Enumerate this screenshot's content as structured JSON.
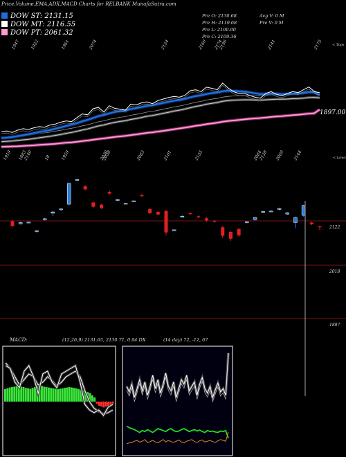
{
  "header": {
    "title": "Price,Volume,EMA,ADX,MACD Charts for RELBANK MunafaSutra.com",
    "ema_labels": [
      {
        "text": "DOW ST: 2131.15",
        "color": "#1e6fd9"
      },
      {
        "text": "DOW MT: 2116.55",
        "color": "#ffffff"
      },
      {
        "text": "DOW PT: 2061.32",
        "color": "#ff9ad0"
      }
    ],
    "ohlc": {
      "open": "Pre   O: 2130.68",
      "high": "Pre   H: 2119.68",
      "low": "Pre   L: 2100.00",
      "close": "Pre   C: 2109.36",
      "avg_volume": "Avg V: 0   M",
      "pre_volume": "Pre  V: 0   M"
    }
  },
  "chart_data": [
    {
      "type": "line",
      "name": "ema-panel",
      "top_labels": [
        "1947",
        "1922",
        "1961",
        "2074",
        "2124",
        "2160",
        "2174",
        "2196",
        "2141",
        "2175"
      ],
      "bottom_labels": [
        "1919",
        "1883",
        "2140",
        "18",
        "1959",
        "2030",
        "2058",
        "2083",
        "2101",
        "2155",
        "2084",
        "2128",
        "2069",
        "2144"
      ],
      "right_top_label": "< Tops",
      "right_bottom_label": "< Lows",
      "value_label": "1897.00",
      "price": [
        1934,
        1938,
        1930,
        1942,
        1950,
        1946,
        1955,
        1961,
        1958,
        1970,
        1975,
        1985,
        1992,
        1988,
        2010,
        2030,
        2025,
        2058,
        2065,
        2040,
        2074,
        2060,
        2055,
        2050,
        2083,
        2078,
        2090,
        2095,
        2085,
        2101,
        2110,
        2118,
        2124,
        2120,
        2130,
        2155,
        2160,
        2150,
        2174,
        2168,
        2160,
        2196,
        2170,
        2150,
        2140,
        2141,
        2130,
        2120,
        2115,
        2140,
        2150,
        2135,
        2128,
        2140,
        2150,
        2145,
        2160,
        2175,
        2150,
        2144
      ],
      "ema_st": [
        1900,
        1902,
        1905,
        1910,
        1915,
        1920,
        1926,
        1932,
        1937,
        1943,
        1950,
        1957,
        1965,
        1972,
        1980,
        1990,
        1998,
        2008,
        2018,
        2024,
        2033,
        2040,
        2045,
        2049,
        2056,
        2061,
        2067,
        2073,
        2077,
        2083,
        2089,
        2095,
        2101,
        2105,
        2111,
        2119,
        2126,
        2130,
        2137,
        2142,
        2145,
        2152,
        2155,
        2154,
        2152,
        2150,
        2146,
        2141,
        2137,
        2137,
        2139,
        2138,
        2136,
        2137,
        2139,
        2140,
        2143,
        2148,
        2148,
        2131
      ],
      "ema_mt": [
        1880,
        1882,
        1884,
        1887,
        1890,
        1893,
        1897,
        1901,
        1905,
        1909,
        1914,
        1919,
        1925,
        1930,
        1936,
        1943,
        1949,
        1957,
        1965,
        1970,
        1978,
        1984,
        1989,
        1993,
        2000,
        2005,
        2011,
        2017,
        2021,
        2027,
        2033,
        2039,
        2045,
        2050,
        2056,
        2063,
        2070,
        2075,
        2082,
        2087,
        2091,
        2098,
        2102,
        2104,
        2105,
        2106,
        2106,
        2105,
        2104,
        2106,
        2108,
        2109,
        2109,
        2110,
        2112,
        2113,
        2115,
        2118,
        2119,
        2116
      ],
      "ema_pt": [
        1860,
        1861,
        1862,
        1863,
        1865,
        1866,
        1868,
        1870,
        1872,
        1874,
        1876,
        1879,
        1882,
        1884,
        1887,
        1891,
        1894,
        1898,
        1902,
        1905,
        1909,
        1913,
        1916,
        1919,
        1923,
        1927,
        1931,
        1935,
        1938,
        1942,
        1946,
        1950,
        1955,
        1959,
        1963,
        1968,
        1973,
        1977,
        1982,
        1986,
        1990,
        1995,
        1999,
        2002,
        2005,
        2008,
        2011,
        2013,
        2015,
        2018,
        2021,
        2023,
        2025,
        2028,
        2031,
        2033,
        2036,
        2039,
        2041,
        2061
      ]
    },
    {
      "type": "bar",
      "name": "price-volume-panel",
      "price_levels": [
        {
          "label": "2122",
          "value": 2122
        },
        {
          "label": "2018",
          "value": 2018
        },
        {
          "label": "1887",
          "value": 1887
        }
      ],
      "candles": [
        {
          "o": 2121,
          "c": 2110,
          "h": 2124,
          "l": 2108
        },
        {
          "o": 2115,
          "c": 2118,
          "h": 2120,
          "l": 2114
        },
        {
          "o": 2118,
          "c": 2119,
          "h": 2120,
          "l": 2117
        },
        {
          "o": 2097,
          "c": 2099,
          "h": 2101,
          "l": 2094
        },
        {
          "o": 2125,
          "c": 2127,
          "h": 2129,
          "l": 2123
        },
        {
          "o": 2140,
          "c": 2143,
          "h": 2146,
          "l": 2133
        },
        {
          "o": 2148,
          "c": 2150,
          "h": 2152,
          "l": 2146
        },
        {
          "o": 2161,
          "c": 2210,
          "h": 2212,
          "l": 2158
        },
        {
          "o": 2218,
          "c": 2219,
          "h": 2221,
          "l": 2216
        },
        {
          "o": 2203,
          "c": 2196,
          "h": 2206,
          "l": 2194
        },
        {
          "o": 2165,
          "c": 2155,
          "h": 2168,
          "l": 2153
        },
        {
          "o": 2160,
          "c": 2152,
          "h": 2162,
          "l": 2150
        },
        {
          "o": 2190,
          "c": 2186,
          "h": 2193,
          "l": 2184
        },
        {
          "o": 2170,
          "c": 2172,
          "h": 2174,
          "l": 2168
        },
        {
          "o": 2162,
          "c": 2163,
          "h": 2164,
          "l": 2161
        },
        {
          "o": 2168,
          "c": 2169,
          "h": 2170,
          "l": 2167
        },
        {
          "o": 2182,
          "c": 2180,
          "h": 2186,
          "l": 2178
        },
        {
          "o": 2150,
          "c": 2140,
          "h": 2152,
          "l": 2138
        },
        {
          "o": 2143,
          "c": 2137,
          "h": 2146,
          "l": 2135
        },
        {
          "o": 2145,
          "c": 2095,
          "h": 2147,
          "l": 2088
        },
        {
          "o": 2100,
          "c": 2101,
          "h": 2102,
          "l": 2099
        },
        {
          "o": 2132,
          "c": 2133,
          "h": 2135,
          "l": 2130
        },
        {
          "o": 2140,
          "c": 2138,
          "h": 2142,
          "l": 2136
        },
        {
          "o": 2133,
          "c": 2131,
          "h": 2135,
          "l": 2128
        },
        {
          "o": 2128,
          "c": 2123,
          "h": 2131,
          "l": 2120
        },
        {
          "o": 2122,
          "c": 2121,
          "h": 2124,
          "l": 2118
        },
        {
          "o": 2107,
          "c": 2087,
          "h": 2110,
          "l": 2082
        },
        {
          "o": 2096,
          "c": 2080,
          "h": 2098,
          "l": 2075
        },
        {
          "o": 2103,
          "c": 2088,
          "h": 2105,
          "l": 2085
        },
        {
          "o": 2118,
          "c": 2120,
          "h": 2122,
          "l": 2116
        },
        {
          "o": 2125,
          "c": 2130,
          "h": 2132,
          "l": 2122
        },
        {
          "o": 2142,
          "c": 2144,
          "h": 2146,
          "l": 2141
        },
        {
          "o": 2144,
          "c": 2145,
          "h": 2147,
          "l": 2143
        },
        {
          "o": 2149,
          "c": 2151,
          "h": 2153,
          "l": 2146
        },
        {
          "o": 2138,
          "c": 2141,
          "h": 2143,
          "l": 2136
        },
        {
          "o": 2118,
          "c": 2130,
          "h": 2132,
          "l": 2105
        },
        {
          "o": 2135,
          "c": 2158,
          "h": 2160,
          "l": 2132
        },
        {
          "o": 2118,
          "c": 2114,
          "h": 2120,
          "l": 2112
        },
        {
          "o": 2109,
          "c": 2108,
          "h": 2110,
          "l": 2100
        }
      ]
    },
    {
      "type": "bar",
      "name": "macd-panel",
      "label": "MACD:",
      "values_text": "(12,26,9) 2131.65,  2130.71,  0.94 DX",
      "macd": [
        0.6,
        0.55,
        0.3,
        0.2,
        0.5,
        0.6,
        0.4,
        0.1,
        0.45,
        0.5,
        0.3,
        0.2,
        0.45,
        0.5,
        0.55,
        0.6,
        0.3,
        -0.1,
        -0.2,
        -0.25,
        -0.2,
        -0.3,
        -0.15,
        -0.1
      ],
      "signal": [
        0.7,
        0.6,
        0.45,
        0.3,
        0.4,
        0.5,
        0.45,
        0.3,
        0.35,
        0.45,
        0.38,
        0.28,
        0.35,
        0.45,
        0.5,
        0.55,
        0.45,
        0.2,
        0.0,
        -0.12,
        -0.18,
        -0.22,
        -0.2,
        -0.15
      ],
      "histogram": [
        0.3,
        0.32,
        0.34,
        0.35,
        0.36,
        0.37,
        0.38,
        0.36,
        0.35,
        0.33,
        0.32,
        0.31,
        0.33,
        0.35,
        0.36,
        0.37,
        0.38,
        0.36,
        0.35,
        0.34,
        0.33,
        0.32,
        0.31,
        0.3,
        0.31,
        0.32,
        0.33,
        0.34,
        0.35,
        0.34,
        0.33,
        0.32,
        0.3,
        0.28,
        0.26,
        0.25,
        0.23,
        0.2,
        0.15,
        0.1,
        -0.05,
        -0.1,
        -0.12,
        -0.14,
        -0.12,
        -0.1,
        -0.08,
        -0.05
      ]
    },
    {
      "type": "line",
      "name": "adx-panel",
      "values_text": "(14  day) 72,  -12,  67",
      "adx": [
        60,
        55,
        62,
        50,
        58,
        66,
        56,
        64,
        52,
        60,
        70,
        58,
        66,
        54,
        62,
        72,
        60,
        56,
        64,
        50,
        58,
        66,
        62,
        70,
        56,
        60,
        64,
        52,
        62,
        68,
        58,
        54,
        60,
        50,
        57,
        63,
        55,
        58,
        52,
        90
      ],
      "plus_di": [
        35,
        32,
        30,
        28,
        25,
        22,
        26,
        24,
        28,
        25,
        22,
        26,
        30,
        28,
        26,
        24,
        28,
        30,
        26,
        24,
        25,
        28,
        30,
        27,
        24,
        26,
        28,
        25,
        27,
        24,
        22,
        26,
        24,
        25,
        23,
        22,
        25,
        24,
        26,
        10
      ],
      "minus_di": [
        12,
        14,
        15,
        18,
        20,
        16,
        18,
        22,
        15,
        17,
        20,
        16,
        14,
        18,
        22,
        16,
        20,
        17,
        15,
        18,
        21,
        16,
        14,
        18,
        20,
        22,
        17,
        15,
        19,
        21,
        16,
        18,
        20,
        17,
        15,
        19,
        22,
        20,
        18,
        40
      ]
    }
  ]
}
